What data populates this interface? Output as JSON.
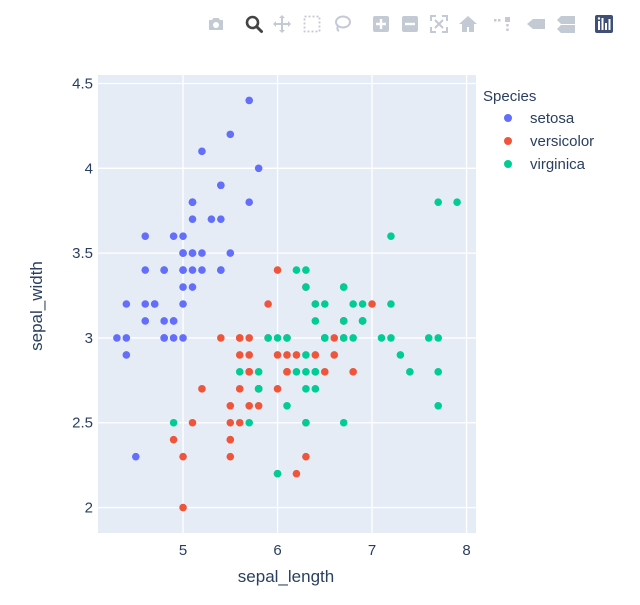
{
  "modebar": {
    "buttons": [
      {
        "name": "camera-icon",
        "label": "Download plot as a png"
      },
      {
        "name": "zoom-icon",
        "label": "Zoom"
      },
      {
        "name": "pan-icon",
        "label": "Pan"
      },
      {
        "name": "box-select-icon",
        "label": "Box Select"
      },
      {
        "name": "lasso-select-icon",
        "label": "Lasso Select"
      },
      {
        "name": "zoom-in-icon",
        "label": "Zoom in"
      },
      {
        "name": "zoom-out-icon",
        "label": "Zoom out"
      },
      {
        "name": "autoscale-icon",
        "label": "Autoscale"
      },
      {
        "name": "reset-axes-icon",
        "label": "Reset axes"
      },
      {
        "name": "spike-lines-icon",
        "label": "Toggle Spike Lines"
      },
      {
        "name": "hover-closest-icon",
        "label": "Show closest data on hover"
      },
      {
        "name": "hover-compare-icon",
        "label": "Compare data on hover"
      },
      {
        "name": "plotly-logo-icon",
        "label": "Produced with Plotly"
      }
    ],
    "colors": {
      "inactive": "#c4cad3",
      "active": "#444444",
      "logo": "#3f4f75"
    }
  },
  "chart_data": {
    "type": "scatter",
    "xlabel": "sepal_length",
    "ylabel": "sepal_width",
    "xlim": [
      4.1,
      8.1
    ],
    "ylim": [
      1.85,
      4.55
    ],
    "xticks": [
      "5",
      "6",
      "7",
      "8"
    ],
    "yticks": [
      "2",
      "2.5",
      "3",
      "3.5",
      "4",
      "4.5"
    ],
    "grid": true,
    "background": "#e5ecf6",
    "legend": {
      "title": "Species",
      "placement": "right"
    },
    "series": [
      {
        "name": "setosa",
        "color": "#636efa",
        "points": [
          [
            5.1,
            3.5
          ],
          [
            4.9,
            3.0
          ],
          [
            4.7,
            3.2
          ],
          [
            4.6,
            3.1
          ],
          [
            5.0,
            3.6
          ],
          [
            5.4,
            3.9
          ],
          [
            4.6,
            3.4
          ],
          [
            5.0,
            3.4
          ],
          [
            4.4,
            2.9
          ],
          [
            4.9,
            3.1
          ],
          [
            5.4,
            3.7
          ],
          [
            4.8,
            3.4
          ],
          [
            4.8,
            3.0
          ],
          [
            4.3,
            3.0
          ],
          [
            5.8,
            4.0
          ],
          [
            5.7,
            4.4
          ],
          [
            5.4,
            3.9
          ],
          [
            5.1,
            3.5
          ],
          [
            5.7,
            3.8
          ],
          [
            5.1,
            3.8
          ],
          [
            5.4,
            3.4
          ],
          [
            5.1,
            3.7
          ],
          [
            4.6,
            3.6
          ],
          [
            5.1,
            3.3
          ],
          [
            4.8,
            3.4
          ],
          [
            5.0,
            3.0
          ],
          [
            5.0,
            3.4
          ],
          [
            5.2,
            3.5
          ],
          [
            5.2,
            3.4
          ],
          [
            4.7,
            3.2
          ],
          [
            4.8,
            3.1
          ],
          [
            5.4,
            3.4
          ],
          [
            5.2,
            4.1
          ],
          [
            5.5,
            4.2
          ],
          [
            4.9,
            3.1
          ],
          [
            5.0,
            3.2
          ],
          [
            5.5,
            3.5
          ],
          [
            4.9,
            3.6
          ],
          [
            4.4,
            3.0
          ],
          [
            5.1,
            3.4
          ],
          [
            5.0,
            3.5
          ],
          [
            4.5,
            2.3
          ],
          [
            4.4,
            3.2
          ],
          [
            5.0,
            3.5
          ],
          [
            5.1,
            3.8
          ],
          [
            4.8,
            3.0
          ],
          [
            5.1,
            3.8
          ],
          [
            4.6,
            3.2
          ],
          [
            5.3,
            3.7
          ],
          [
            5.0,
            3.3
          ]
        ]
      },
      {
        "name": "versicolor",
        "color": "#ef553b",
        "points": [
          [
            7.0,
            3.2
          ],
          [
            6.4,
            3.2
          ],
          [
            6.9,
            3.1
          ],
          [
            5.5,
            2.3
          ],
          [
            6.5,
            2.8
          ],
          [
            5.7,
            2.8
          ],
          [
            6.3,
            3.3
          ],
          [
            4.9,
            2.4
          ],
          [
            6.6,
            2.9
          ],
          [
            5.2,
            2.7
          ],
          [
            5.0,
            2.0
          ],
          [
            5.9,
            3.0
          ],
          [
            6.0,
            2.2
          ],
          [
            6.1,
            2.9
          ],
          [
            5.6,
            2.9
          ],
          [
            6.7,
            3.1
          ],
          [
            5.6,
            3.0
          ],
          [
            5.8,
            2.7
          ],
          [
            6.2,
            2.2
          ],
          [
            5.6,
            2.5
          ],
          [
            5.9,
            3.2
          ],
          [
            6.1,
            2.8
          ],
          [
            6.3,
            2.5
          ],
          [
            6.1,
            2.8
          ],
          [
            6.4,
            2.9
          ],
          [
            6.6,
            3.0
          ],
          [
            6.8,
            2.8
          ],
          [
            6.7,
            3.0
          ],
          [
            6.0,
            2.9
          ],
          [
            5.7,
            2.6
          ],
          [
            5.5,
            2.4
          ],
          [
            5.5,
            2.4
          ],
          [
            5.8,
            2.7
          ],
          [
            6.0,
            2.7
          ],
          [
            5.4,
            3.0
          ],
          [
            6.0,
            3.4
          ],
          [
            6.7,
            3.1
          ],
          [
            6.3,
            2.3
          ],
          [
            5.6,
            3.0
          ],
          [
            5.5,
            2.5
          ],
          [
            5.5,
            2.6
          ],
          [
            6.1,
            3.0
          ],
          [
            5.8,
            2.6
          ],
          [
            5.0,
            2.3
          ],
          [
            5.6,
            2.7
          ],
          [
            5.7,
            3.0
          ],
          [
            5.7,
            2.9
          ],
          [
            6.2,
            2.9
          ],
          [
            5.1,
            2.5
          ],
          [
            5.7,
            2.8
          ]
        ]
      },
      {
        "name": "virginica",
        "color": "#00cc96",
        "points": [
          [
            6.3,
            3.3
          ],
          [
            5.8,
            2.7
          ],
          [
            7.1,
            3.0
          ],
          [
            6.3,
            2.9
          ],
          [
            6.5,
            3.0
          ],
          [
            7.6,
            3.0
          ],
          [
            4.9,
            2.5
          ],
          [
            7.3,
            2.9
          ],
          [
            6.7,
            2.5
          ],
          [
            7.2,
            3.6
          ],
          [
            6.5,
            3.2
          ],
          [
            6.4,
            2.7
          ],
          [
            6.8,
            3.0
          ],
          [
            5.7,
            2.5
          ],
          [
            5.8,
            2.8
          ],
          [
            6.4,
            3.2
          ],
          [
            6.5,
            3.0
          ],
          [
            7.7,
            3.8
          ],
          [
            7.7,
            2.6
          ],
          [
            6.0,
            2.2
          ],
          [
            6.9,
            3.2
          ],
          [
            5.6,
            2.8
          ],
          [
            7.7,
            2.8
          ],
          [
            6.3,
            2.7
          ],
          [
            6.7,
            3.3
          ],
          [
            7.2,
            3.2
          ],
          [
            6.2,
            2.8
          ],
          [
            6.1,
            3.0
          ],
          [
            6.4,
            2.8
          ],
          [
            7.2,
            3.0
          ],
          [
            7.4,
            2.8
          ],
          [
            7.9,
            3.8
          ],
          [
            6.4,
            2.8
          ],
          [
            6.3,
            2.8
          ],
          [
            6.1,
            2.6
          ],
          [
            7.7,
            3.0
          ],
          [
            6.3,
            3.4
          ],
          [
            6.4,
            3.1
          ],
          [
            6.0,
            3.0
          ],
          [
            6.9,
            3.1
          ],
          [
            6.7,
            3.1
          ],
          [
            6.9,
            3.1
          ],
          [
            5.8,
            2.7
          ],
          [
            6.8,
            3.2
          ],
          [
            6.7,
            3.3
          ],
          [
            6.7,
            3.0
          ],
          [
            6.3,
            2.5
          ],
          [
            6.5,
            3.0
          ],
          [
            6.2,
            3.4
          ],
          [
            5.9,
            3.0
          ]
        ]
      }
    ]
  }
}
